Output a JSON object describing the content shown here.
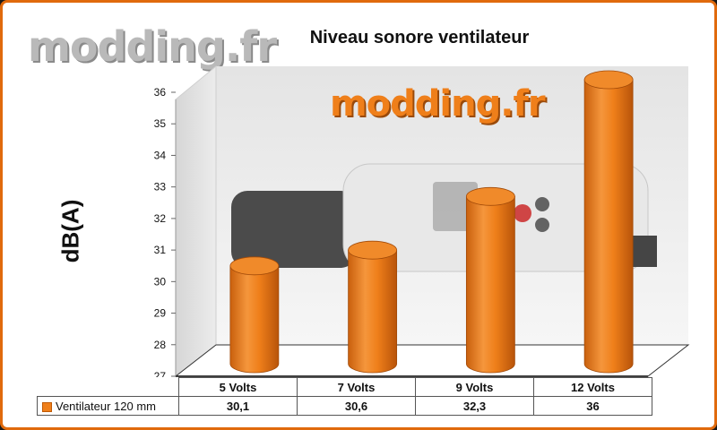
{
  "watermark": {
    "text": "modding.fr"
  },
  "chart_data": {
    "type": "bar",
    "title": "Niveau sonore ventilateur",
    "ylabel": "dB(A)",
    "xlabel": "",
    "categories": [
      "5 Volts",
      "7 Volts",
      "9 Volts",
      "12 Volts"
    ],
    "series": [
      {
        "name": "Ventilateur 120 mm",
        "values": [
          30.1,
          30.6,
          32.3,
          36
        ],
        "value_labels": [
          "30,1",
          "30,6",
          "32,3",
          "36"
        ],
        "color": "#ef7f1a"
      }
    ],
    "ylim": [
      27,
      36
    ],
    "yticks": [
      27,
      28,
      29,
      30,
      31,
      32,
      33,
      34,
      35,
      36
    ],
    "legend": "data-table"
  }
}
